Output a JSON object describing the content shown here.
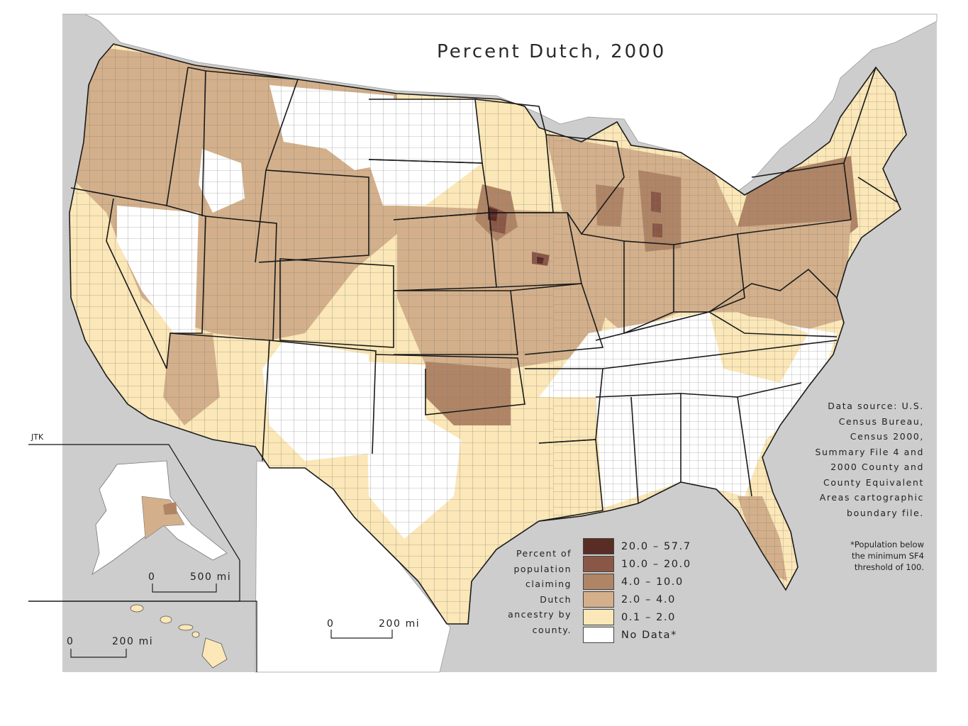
{
  "map": {
    "title": "Percent Dutch, 2000",
    "attribution": "JTK",
    "source_lines": [
      "Data source: U.S.",
      "Census Bureau,",
      "Census 2000,",
      "Summary File 4 and",
      "2000 County and",
      "County Equivalent",
      "Areas cartographic",
      "boundary file."
    ],
    "note_lines": [
      "*Population below",
      "the minimum SF4",
      "threshold of 100."
    ],
    "legend": {
      "caption_lines": [
        "Percent of",
        "population",
        "claiming",
        "Dutch",
        "ancestry by",
        "county."
      ],
      "classes": [
        {
          "label": "20.0 – 57.7",
          "color": "#5a2c26"
        },
        {
          "label": "10.0 – 20.0",
          "color": "#8a5747"
        },
        {
          "label": "4.0 – 10.0",
          "color": "#b08566"
        },
        {
          "label": "2.0 – 4.0",
          "color": "#d3b08b"
        },
        {
          "label": "0.1 – 2.0",
          "color": "#fbe7b7"
        },
        {
          "label": "No Data*",
          "color": "#ffffff"
        }
      ]
    },
    "scale_bars": {
      "main": {
        "start": "0",
        "end": "200 mi"
      },
      "alaska": {
        "start": "0",
        "end": "500 mi"
      },
      "hawaii": {
        "start": "0",
        "end": "200 mi"
      }
    },
    "colors": {
      "water": "#cdcdcd",
      "background": "#ffffff",
      "county_border": "#7a7a7a",
      "state_border": "#1a1a1a"
    }
  }
}
